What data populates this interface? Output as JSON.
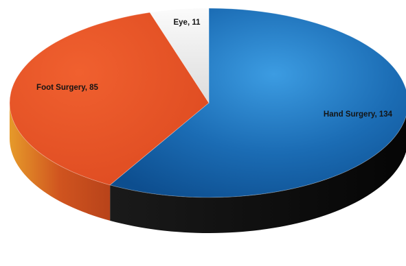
{
  "chart_data": {
    "type": "pie",
    "style": "3d",
    "title": "",
    "slices": [
      {
        "label": "Hand Surgery",
        "value": 134,
        "color": "#1f6fb6"
      },
      {
        "label": "Foot Surgery",
        "value": 85,
        "color": "#e8532a"
      },
      {
        "label": "Eye",
        "value": 11,
        "color": "#eeeeee"
      }
    ],
    "data_labels": [
      "Hand Surgery, 134",
      "Foot Surgery, 85",
      "Eye, 11"
    ]
  }
}
